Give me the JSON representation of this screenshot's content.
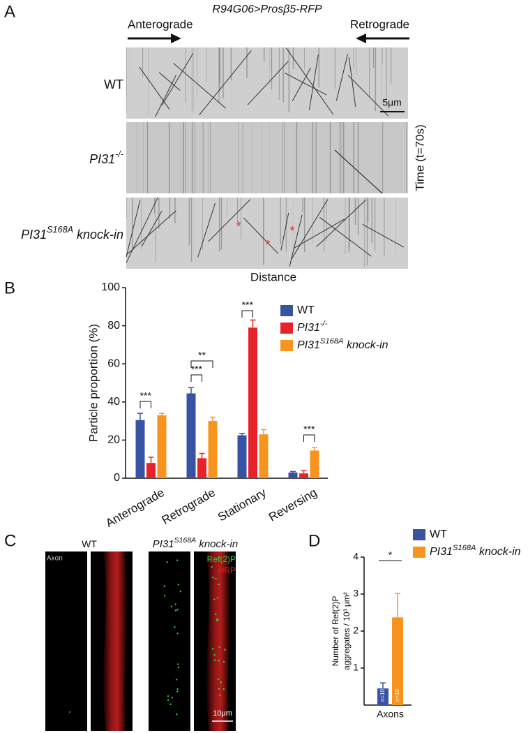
{
  "panel_labels": [
    "A",
    "B",
    "C",
    "D"
  ],
  "kymograph": {
    "title": "R94G06>Prosβ5-RFP",
    "left_direction": "Anterograde",
    "right_direction": "Retrograde",
    "rows": [
      {
        "name": "WT"
      },
      {
        "name": "PI31",
        "name_sup": "-/-"
      },
      {
        "name": "PI31",
        "name_sup": "S168A",
        "name_suffix": " knock-in"
      }
    ],
    "scale_bar": "5μm",
    "y_label": "Time (t=70s)",
    "x_label": "Distance",
    "markers": [
      "*",
      "*",
      "*"
    ]
  },
  "micrographs": {
    "columns": [
      {
        "name": "WT"
      },
      {
        "name": "PI31",
        "name_sup": "S168A",
        "name_suffix": " knock-in"
      }
    ],
    "region": "Axon",
    "channels": [
      {
        "name": "Ref(2)P",
        "color": "#3cc83c"
      },
      {
        "name": "HRP",
        "color": "#e02020"
      }
    ],
    "scale_bar": "10μm"
  },
  "chart_data": [
    {
      "type": "bar",
      "ylabel": "Particle proportion (%)",
      "categories": [
        "Anterograde",
        "Retrograde",
        "Stationary",
        "Reversing"
      ],
      "ylim": [
        0,
        100
      ],
      "yticks": [
        0,
        20,
        40,
        60,
        80,
        100
      ],
      "legend": "upper right",
      "series": [
        {
          "name": "WT",
          "color": "#3953a4",
          "values": [
            30.5,
            44.5,
            22.5,
            3
          ],
          "errors": [
            3.5,
            3,
            1,
            0.5
          ]
        },
        {
          "name": "PI31",
          "name_sup": "-/-",
          "color": "#e8222b",
          "values": [
            8,
            10.5,
            79,
            2.5
          ],
          "errors": [
            3,
            2.5,
            4,
            1.5
          ]
        },
        {
          "name": "PI31",
          "name_sup": "S168A",
          "name_suffix": " knock-in",
          "color": "#f7941d",
          "values": [
            33,
            30,
            23,
            14.5
          ],
          "errors": [
            1,
            2,
            2.5,
            1.5
          ]
        }
      ],
      "annotations": [
        {
          "text": "***"
        },
        {
          "text": "***"
        },
        {
          "text": "**"
        },
        {
          "text": "***"
        },
        {
          "text": "***"
        }
      ]
    },
    {
      "type": "bar",
      "ylabel": [
        "Number of Ref(2)P",
        "aggregates / 10³ μm²"
      ],
      "categories": [
        "Axons"
      ],
      "ylim": [
        0,
        4
      ],
      "yticks": [
        1,
        2,
        3,
        4
      ],
      "legend": "upper right",
      "series": [
        {
          "name": "WT",
          "color": "#3953a4",
          "values": [
            0.45
          ],
          "errors": [
            0.15
          ],
          "n_label": "n=10"
        },
        {
          "name": "PI31",
          "name_sup": "S168A",
          "name_suffix": " knock-in",
          "color": "#f7941d",
          "values": [
            2.37
          ],
          "errors": [
            0.65
          ],
          "n_label": "n=10"
        }
      ],
      "annotations": [
        {
          "text": "*"
        }
      ]
    }
  ]
}
